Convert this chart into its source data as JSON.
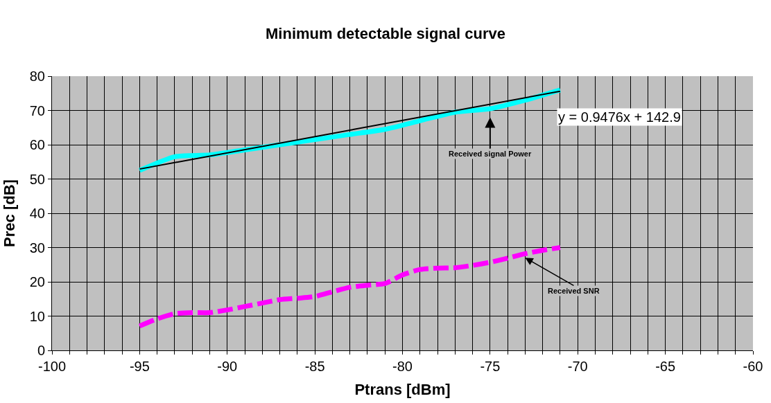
{
  "chart_data": {
    "type": "line",
    "title": "Minimum detectable signal curve",
    "xlabel": "Ptrans [dBm]",
    "ylabel": "Prec [dB]",
    "xlim": [
      -100,
      -60
    ],
    "ylim": [
      0,
      80
    ],
    "xticks": [
      -100,
      {
        "value": -99,
        "label": null
      },
      {
        "value": -98,
        "label": null
      },
      {
        "value": -97,
        "label": null
      },
      {
        "value": -96,
        "label": null
      },
      -95,
      {
        "value": -94,
        "label": null
      },
      {
        "value": -93,
        "label": null
      },
      {
        "value": -92,
        "label": null
      },
      {
        "value": -91,
        "label": null
      },
      -90,
      {
        "value": -89,
        "label": null
      },
      {
        "value": -88,
        "label": null
      },
      {
        "value": -87,
        "label": null
      },
      {
        "value": -86,
        "label": null
      },
      -85,
      {
        "value": -84,
        "label": null
      },
      {
        "value": -83,
        "label": null
      },
      {
        "value": -82,
        "label": null
      },
      {
        "value": -81,
        "label": null
      },
      -80,
      {
        "value": -79,
        "label": null
      },
      {
        "value": -78,
        "label": null
      },
      {
        "value": -77,
        "label": null
      },
      {
        "value": -76,
        "label": null
      },
      -75,
      {
        "value": -74,
        "label": null
      },
      {
        "value": -73,
        "label": null
      },
      {
        "value": -72,
        "label": null
      },
      {
        "value": -71,
        "label": null
      },
      -70,
      {
        "value": -69,
        "label": null
      },
      {
        "value": -68,
        "label": null
      },
      {
        "value": -67,
        "label": null
      },
      {
        "value": -66,
        "label": null
      },
      -65,
      {
        "value": -64,
        "label": null
      },
      {
        "value": -63,
        "label": null
      },
      {
        "value": -62,
        "label": null
      },
      {
        "value": -61,
        "label": null
      },
      -60
    ],
    "yticks": [
      0,
      10,
      20,
      30,
      40,
      50,
      60,
      70,
      80
    ],
    "grid": true,
    "marker": "none",
    "series": [
      {
        "color": "#00ffff",
        "line_style": "solid",
        "x": [
          -95,
          -93,
          -91,
          -89,
          -87,
          -85,
          -83,
          -81,
          -79,
          -77,
          -75,
          -73,
          -71
        ],
        "values": [
          52.5,
          56.5,
          57,
          58.5,
          60,
          61.5,
          63,
          64.5,
          67,
          69.5,
          70.5,
          73,
          76
        ]
      },
      {
        "color": "#ff00ff",
        "line_style": "dashed",
        "x": [
          -95,
          -94,
          -93,
          -92,
          -91,
          -90,
          -89,
          -88,
          -87,
          -86,
          -85,
          -84,
          -83,
          -82,
          -81,
          -80,
          -79,
          -78,
          -77,
          -76,
          -75,
          -74,
          -73,
          -72,
          -71
        ],
        "values": [
          7.1,
          9.2,
          10.7,
          11,
          11,
          11.8,
          12.8,
          13.8,
          14.8,
          15.2,
          15.7,
          17.1,
          18.4,
          19,
          19.5,
          22,
          23.6,
          24,
          24.1,
          24.8,
          25.7,
          26.9,
          28.2,
          29.2,
          30
        ]
      },
      {
        "type": "line",
        "color": "#000000",
        "line_style": "solid",
        "x": [
          -95,
          -71
        ],
        "values": [
          52.9,
          75.6
        ]
      }
    ],
    "annotations": [
      "y = 0.9476x + 142.9",
      "Received signal Power",
      {
        "text": "Received SNR",
        "x": -73,
        "y": 27
      }
    ]
  }
}
